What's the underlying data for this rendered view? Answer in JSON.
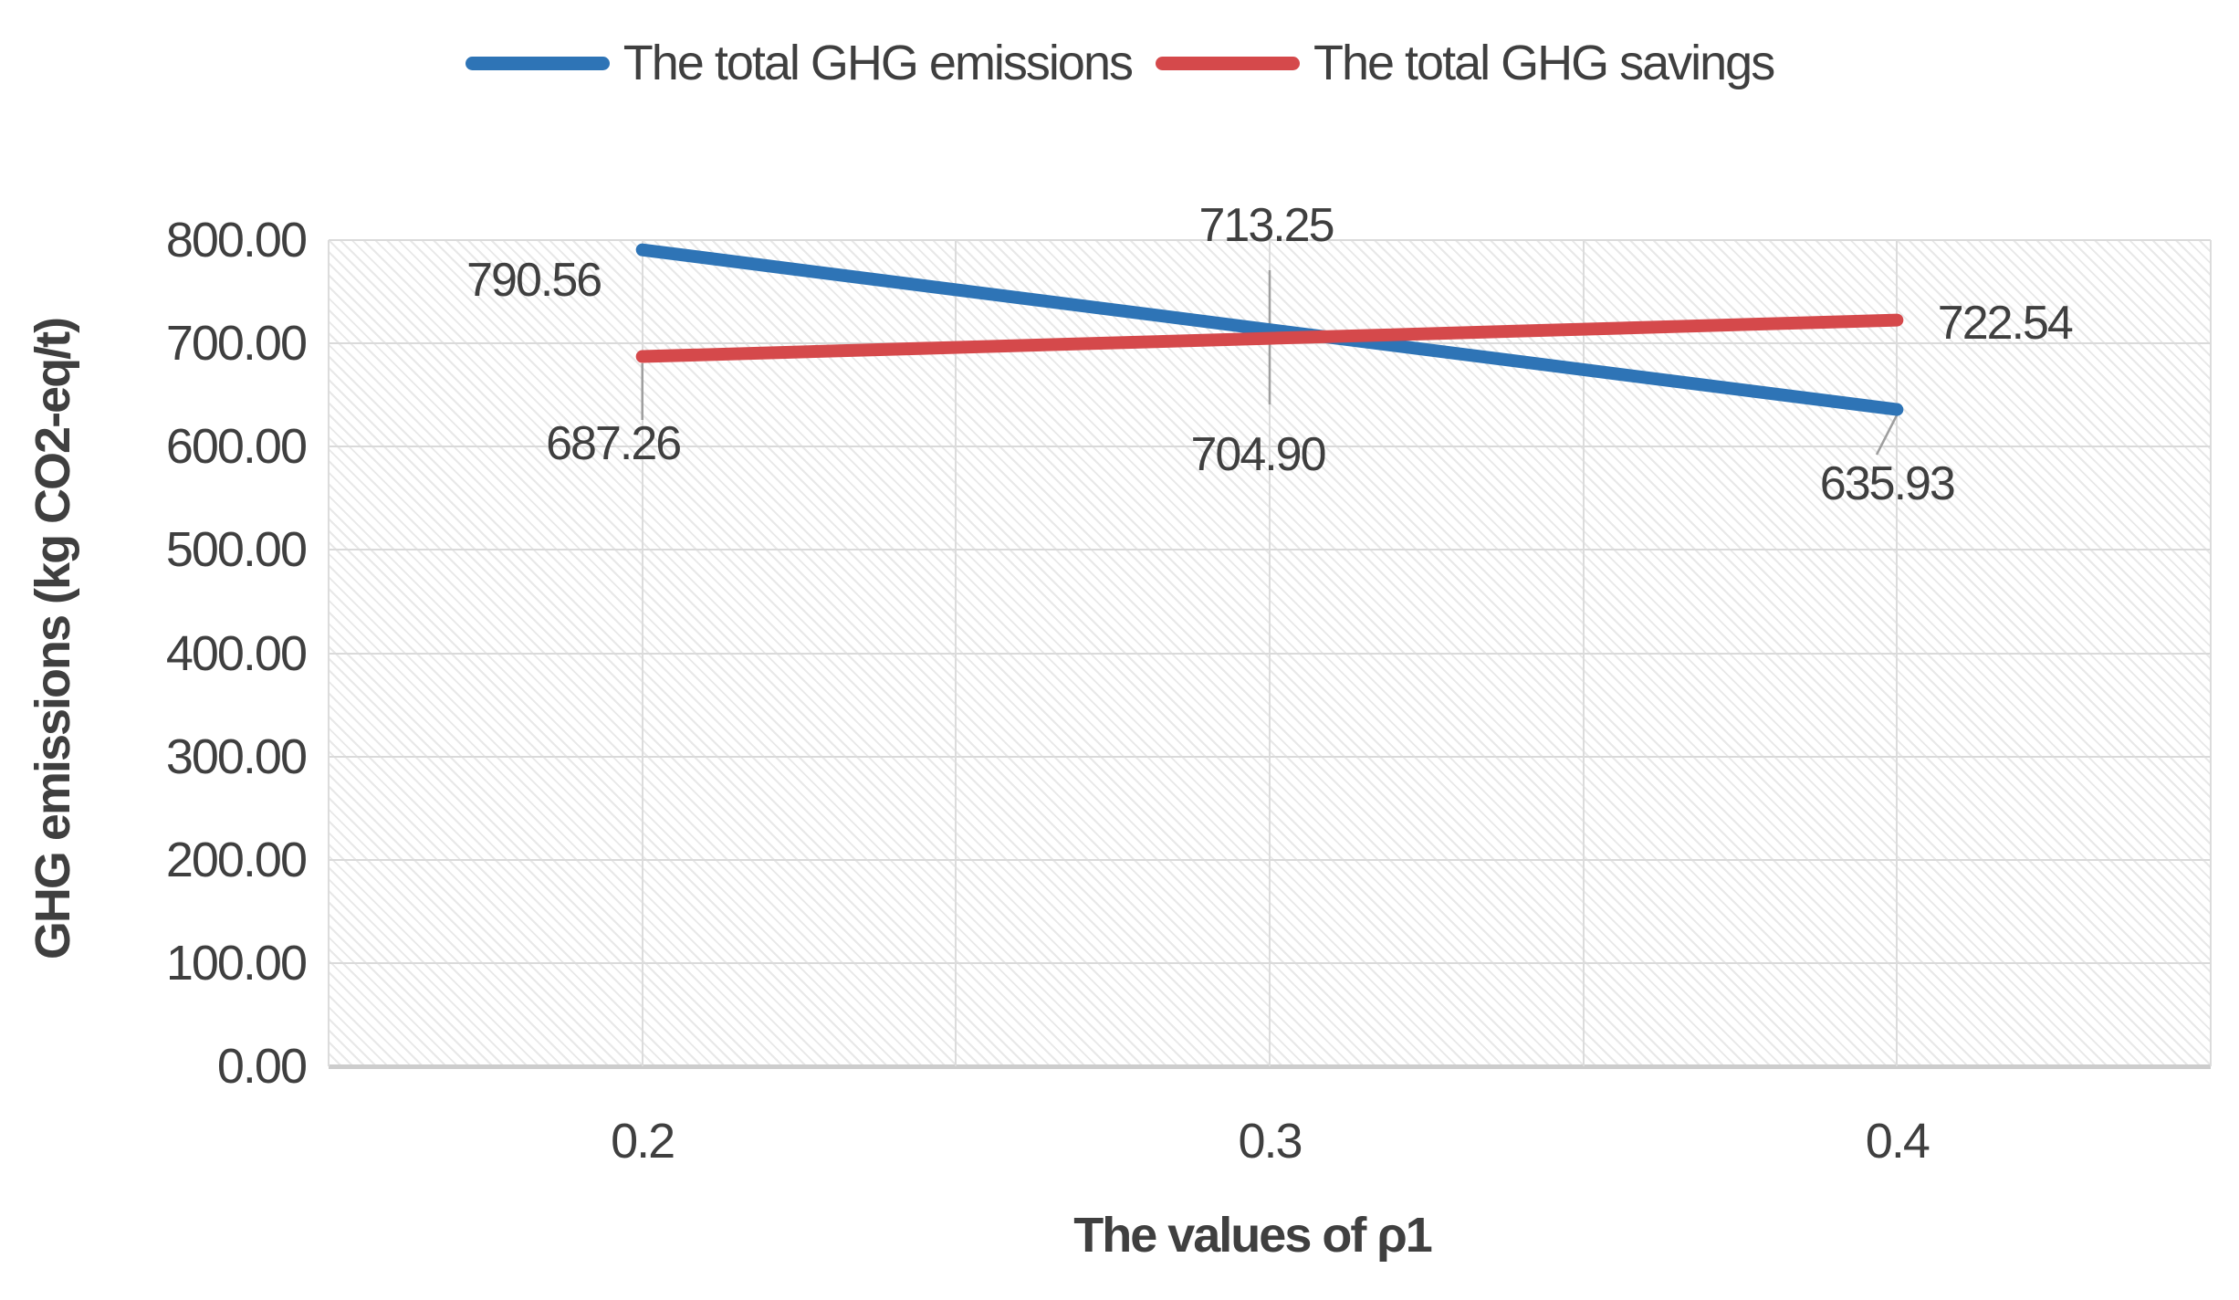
{
  "chart_data": {
    "type": "line",
    "title": "",
    "categories": [
      "0.2",
      "0.3",
      "0.4"
    ],
    "series": [
      {
        "name": "The total GHG emissions",
        "color": "#2E74B6",
        "values": [
          790.56,
          713.25,
          635.93
        ],
        "point_labels": [
          "790.56",
          "713.25",
          "635.93"
        ]
      },
      {
        "name": "The total GHG savings",
        "color": "#D5494B",
        "values": [
          687.26,
          704.9,
          722.54
        ],
        "point_labels": [
          "687.26",
          "704.90",
          "722.54"
        ]
      }
    ],
    "xlabel": "The values of ρ1",
    "ylabel": "GHG emissions (kg CO2-eq/t)",
    "ylim": [
      0,
      800
    ],
    "y_tick_step": 100,
    "y_tick_labels": [
      "0.00",
      "100.00",
      "200.00",
      "300.00",
      "400.00",
      "500.00",
      "600.00",
      "700.00",
      "800.00"
    ],
    "legend_position": "top",
    "grid": "horizontal and vertical light-gray gridlines, hatched plot background"
  },
  "colors": {
    "text": "#3F3F3F",
    "gridline": "#DADADA",
    "axis_line": "#CDCDCD",
    "leader_line": "#9E9E9E",
    "series_blue": "#2E74B6",
    "series_red": "#D5494B"
  }
}
